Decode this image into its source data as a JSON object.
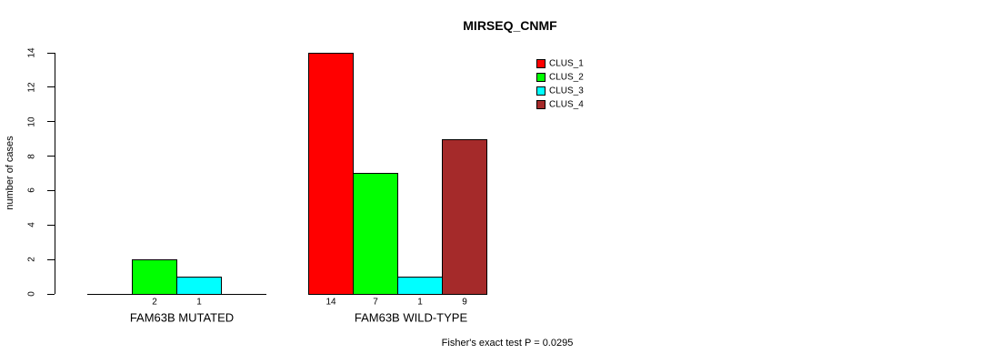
{
  "chart_data": {
    "type": "bar",
    "title": "MIRSEQ_CNMF",
    "ylabel": "number of cases",
    "xlabel": "",
    "ylim": [
      0,
      14
    ],
    "yticks": [
      0,
      2,
      4,
      6,
      8,
      10,
      12,
      14
    ],
    "grid": false,
    "bar_border_color": "#000000",
    "legend_position": "top-right",
    "series": [
      {
        "name": "CLUS_1",
        "color": "#FF0000"
      },
      {
        "name": "CLUS_2",
        "color": "#00FF00"
      },
      {
        "name": "CLUS_3",
        "color": "#00FFFF"
      },
      {
        "name": "CLUS_4",
        "color": "#A52A2A"
      }
    ],
    "groups": [
      {
        "label": "FAM63B MUTATED",
        "values": [
          0,
          2,
          1,
          0
        ],
        "shown_value_labels": [
          "2",
          "1"
        ]
      },
      {
        "label": "FAM63B WILD-TYPE",
        "values": [
          14,
          7,
          1,
          9
        ],
        "shown_value_labels": [
          "14",
          "7",
          "1",
          "9"
        ]
      }
    ],
    "annotation": "Fisher's exact test P = 0.0295"
  }
}
